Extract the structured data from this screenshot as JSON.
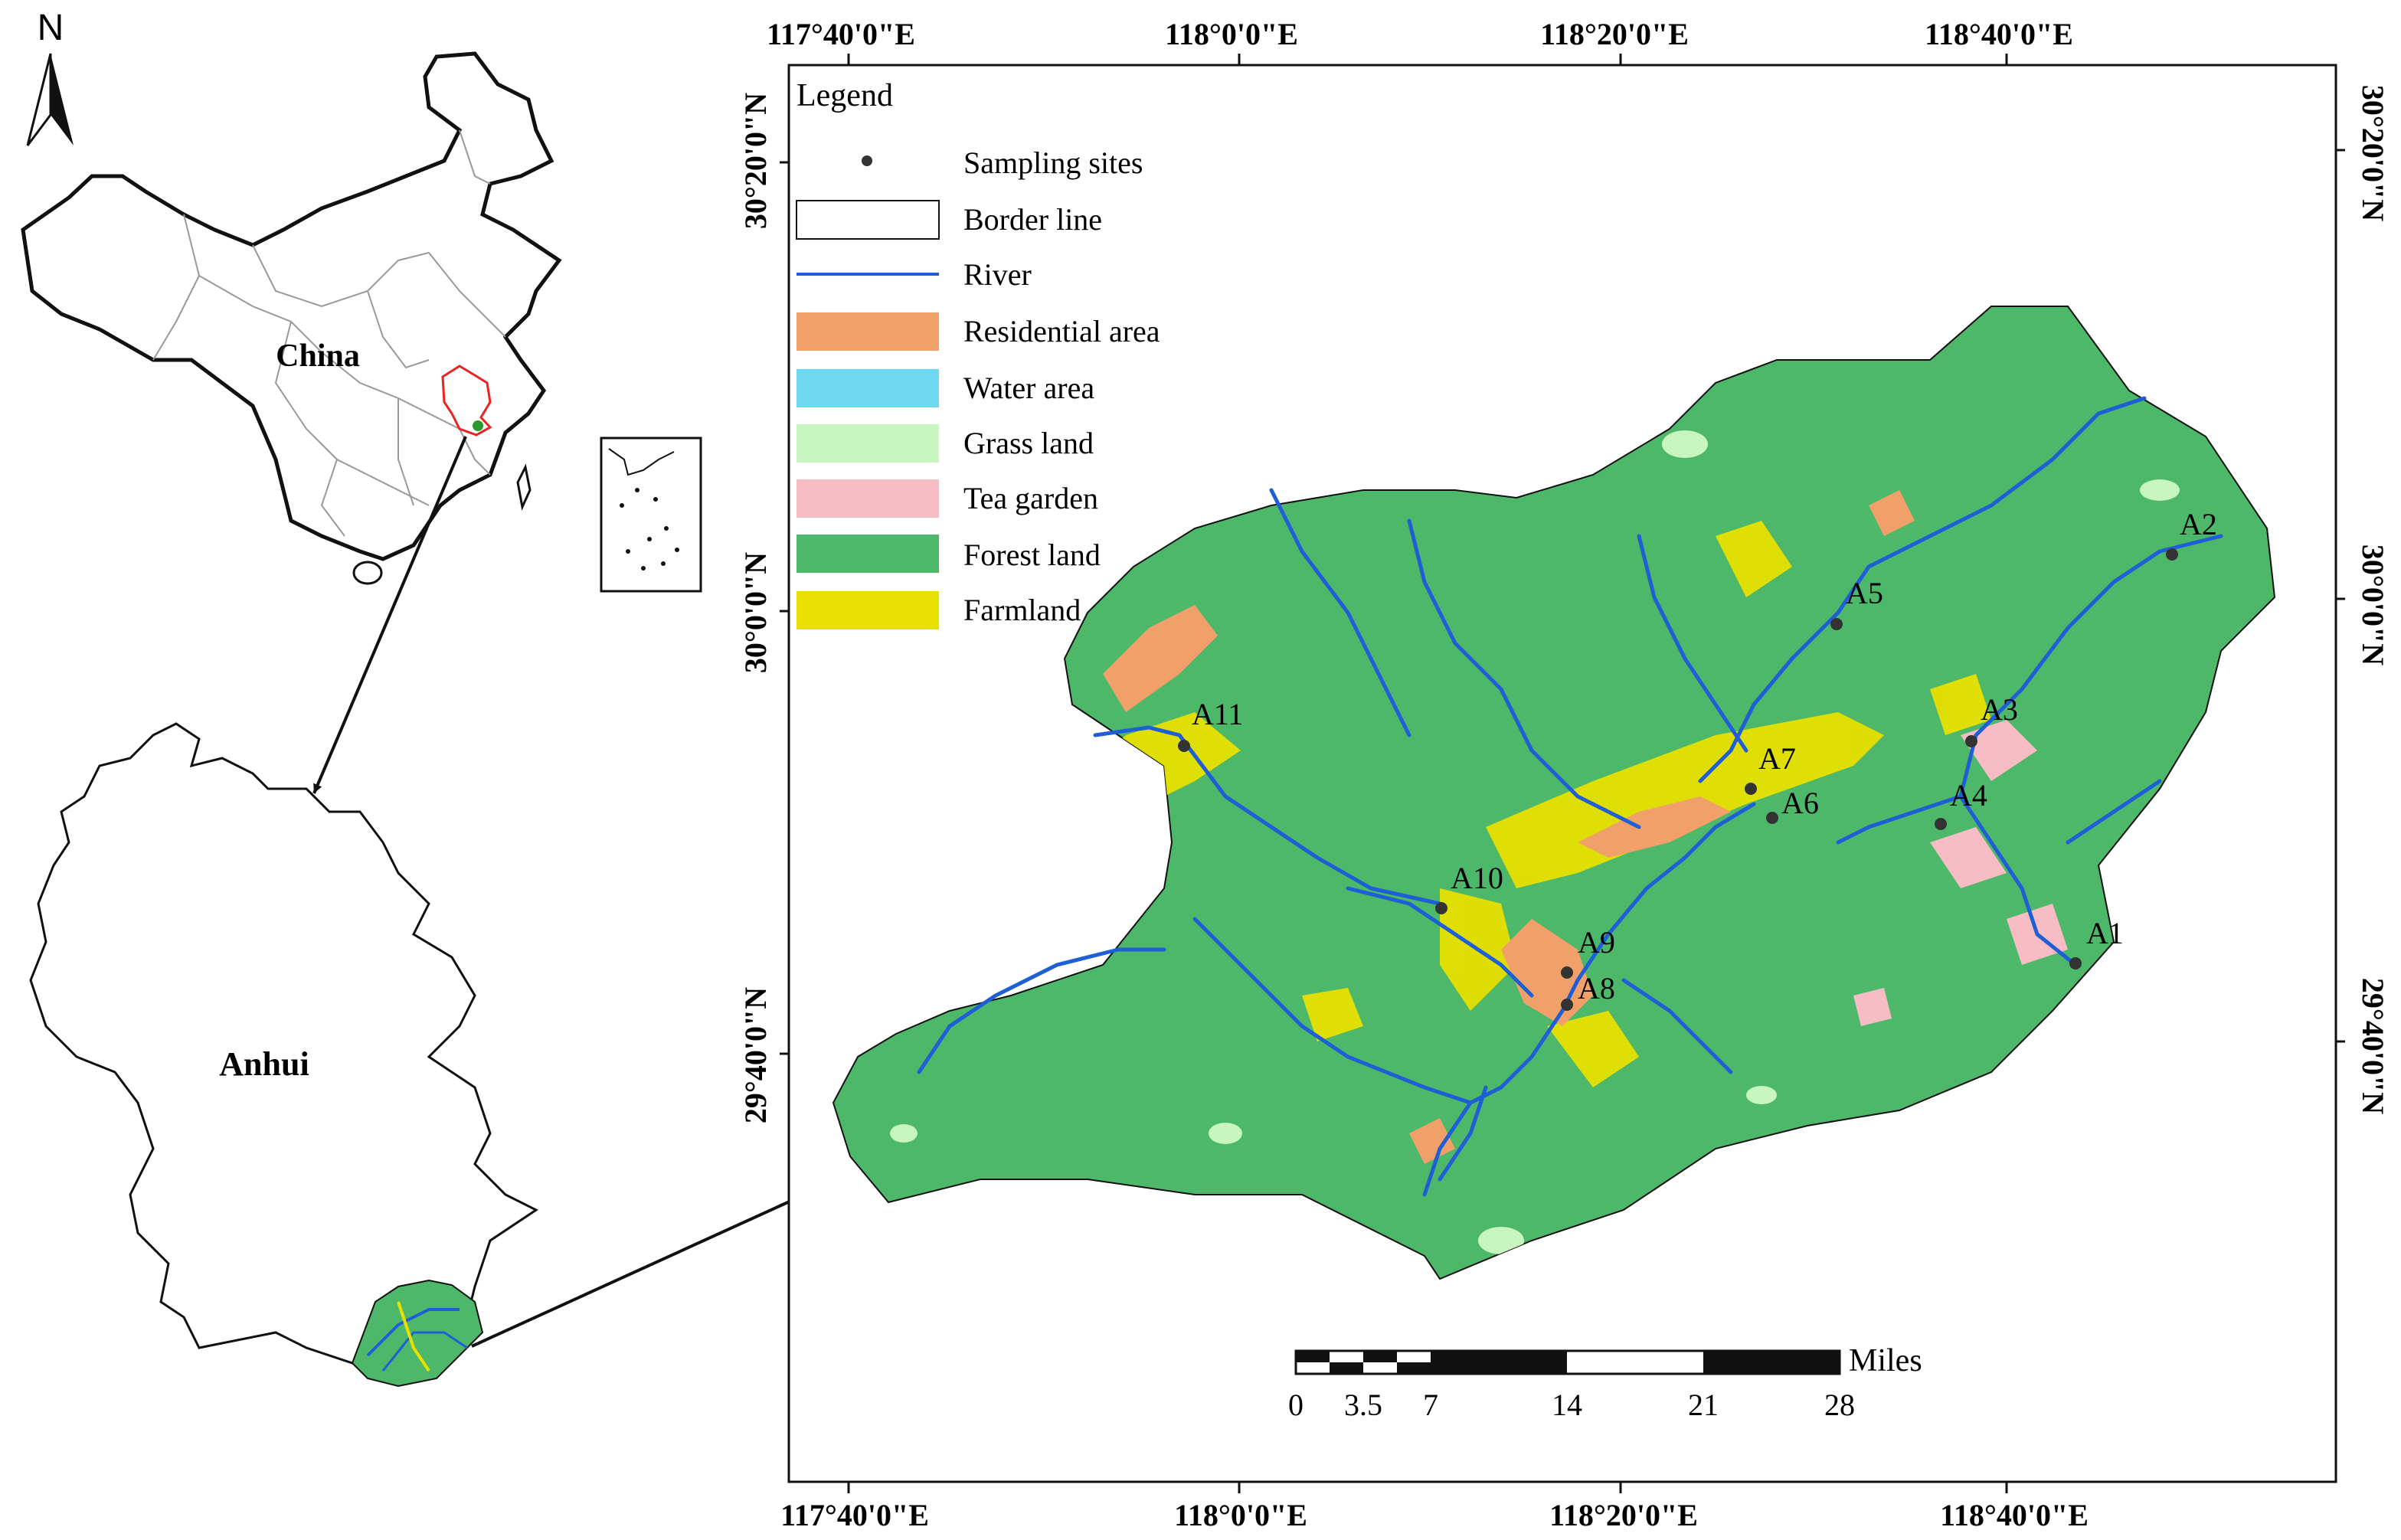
{
  "north_arrow": {
    "label": "N"
  },
  "inset_china": {
    "label": "China"
  },
  "inset_anhui": {
    "label": "Anhui"
  },
  "coordinates": {
    "top_lon": [
      "117°40'0\"E",
      "118°0'0\"E",
      "118°20'0\"E",
      "118°40'0\"E"
    ],
    "bottom_lon": [
      "117°40'0\"E",
      "118°0'0\"E",
      "118°20'0\"E",
      "118°40'0\"E"
    ],
    "left_lat": [
      "30°20'0\"N",
      "30°0'0\"N",
      "29°40'0\"N"
    ],
    "right_lat": [
      "30°20'0\"N",
      "30°0'0\"N",
      "29°40'0\"N"
    ]
  },
  "legend": {
    "title": "Legend",
    "items": [
      {
        "label": "Sampling sites",
        "symbol": "point",
        "color": "#333333"
      },
      {
        "label": "Border line",
        "symbol": "box",
        "color": "#ffffff"
      },
      {
        "label": "River",
        "symbol": "line",
        "color": "#1f5fd6"
      },
      {
        "label": "Residential area",
        "symbol": "box",
        "color": "#f0a068"
      },
      {
        "label": "Water area",
        "symbol": "box",
        "color": "#6dd8f0"
      },
      {
        "label": "Grass land",
        "symbol": "box",
        "color": "#c8f5c0"
      },
      {
        "label": "Tea garden",
        "symbol": "box",
        "color": "#f7bcc4"
      },
      {
        "label": "Forest land",
        "symbol": "box",
        "color": "#4db86a"
      },
      {
        "label": "Farmland",
        "symbol": "box",
        "color": "#e8e000"
      }
    ]
  },
  "sites": [
    "A1",
    "A2",
    "A3",
    "A4",
    "A5",
    "A6",
    "A7",
    "A8",
    "A9",
    "A10",
    "A11"
  ],
  "scale_bar": {
    "ticks": [
      "0",
      "3.5",
      "7",
      "14",
      "21",
      "28"
    ],
    "unit": "Miles"
  },
  "colors": {
    "forest": "#4db86a",
    "farmland": "#e8e000",
    "residential": "#f0a068",
    "grass": "#c8f5c0",
    "tea": "#f7bcc4",
    "river": "#1f5fd6",
    "anhui_highlight": "#ee2222"
  }
}
